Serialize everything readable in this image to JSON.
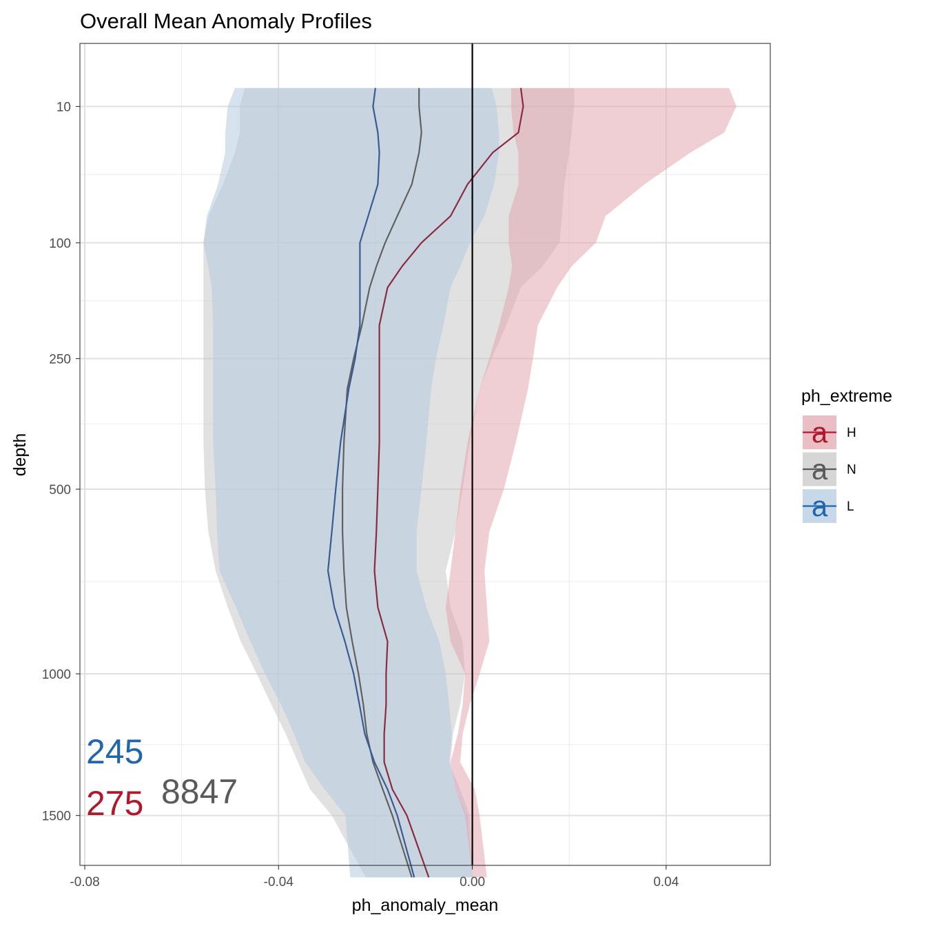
{
  "chart_data": {
    "type": "area",
    "title": "Overall Mean Anomaly Profiles",
    "xlabel": "ph_anomaly_mean",
    "ylabel": "depth",
    "xlim": [
      -0.081,
      0.0615
    ],
    "y_transform": "sqrt",
    "ylim": [
      -1700,
      0
    ],
    "x_ticks": [
      -0.08,
      -0.04,
      0.0,
      0.04
    ],
    "x_tick_labels": [
      "-0.08",
      "-0.04",
      "0.00",
      "0.04"
    ],
    "y_ticks": [
      10,
      100,
      250,
      500,
      1000,
      1500
    ],
    "y_tick_labels": [
      "10",
      "100",
      "250",
      "500",
      "1000",
      "1500"
    ],
    "grid": true,
    "legend": {
      "title": "ph_extreme",
      "placement": "right",
      "keys": [
        "H",
        "N",
        "L"
      ],
      "glyph": "a"
    },
    "vline_x": 0.0,
    "depths": [
      5,
      10,
      20,
      30,
      50,
      75,
      100,
      125,
      150,
      200,
      250,
      300,
      400,
      500,
      600,
      700,
      800,
      900,
      1000,
      1100,
      1200,
      1300,
      1400,
      1500,
      1750
    ],
    "series": [
      {
        "name": "N",
        "color": "#606060",
        "fill": "#c8c8c8",
        "mean": [
          -0.011,
          -0.011,
          -0.0105,
          -0.011,
          -0.0125,
          -0.0155,
          -0.018,
          -0.0198,
          -0.0212,
          -0.0228,
          -0.0245,
          -0.0258,
          -0.0265,
          -0.0268,
          -0.0268,
          -0.0265,
          -0.026,
          -0.0248,
          -0.0235,
          -0.0225,
          -0.0218,
          -0.0205,
          -0.0185,
          -0.0165,
          -0.0125
        ],
        "lower": [
          -0.047,
          -0.048,
          -0.048,
          -0.049,
          -0.0515,
          -0.0545,
          -0.0555,
          -0.0555,
          -0.0555,
          -0.0555,
          -0.0555,
          -0.0555,
          -0.0555,
          -0.0552,
          -0.0545,
          -0.053,
          -0.0505,
          -0.0478,
          -0.0445,
          -0.0415,
          -0.0385,
          -0.036,
          -0.0335,
          -0.029,
          -0.022
        ],
        "upper": [
          0.021,
          0.021,
          0.0205,
          0.02,
          0.019,
          0.0185,
          0.018,
          0.0145,
          0.01,
          0.007,
          0.004,
          0.0015,
          -0.0005,
          -0.002,
          -0.0035,
          -0.0055,
          -0.0045,
          -0.002,
          -0.0015,
          -0.0025,
          -0.004,
          -0.0045,
          -0.0035,
          -0.001,
          0.0
        ]
      },
      {
        "name": "L",
        "color": "#3a5a94",
        "fill": "#b4cce2",
        "mean": [
          -0.02,
          -0.0205,
          -0.0195,
          -0.0192,
          -0.0195,
          -0.0215,
          -0.0232,
          -0.0232,
          -0.0232,
          -0.0232,
          -0.0242,
          -0.0255,
          -0.0272,
          -0.0282,
          -0.029,
          -0.0298,
          -0.0285,
          -0.0263,
          -0.0245,
          -0.0233,
          -0.0222,
          -0.0202,
          -0.0175,
          -0.0155,
          -0.012
        ],
        "lower": [
          -0.049,
          -0.0505,
          -0.051,
          -0.051,
          -0.0525,
          -0.0548,
          -0.0555,
          -0.0545,
          -0.0538,
          -0.0535,
          -0.0535,
          -0.0535,
          -0.0535,
          -0.053,
          -0.0527,
          -0.0522,
          -0.0488,
          -0.0458,
          -0.0428,
          -0.0395,
          -0.0368,
          -0.0345,
          -0.0305,
          -0.0262,
          -0.0252
        ],
        "upper": [
          0.004,
          0.005,
          0.0055,
          0.0055,
          0.0045,
          0.0025,
          -0.0005,
          -0.0025,
          -0.0045,
          -0.006,
          -0.0075,
          -0.0085,
          -0.0095,
          -0.0105,
          -0.0115,
          -0.0115,
          -0.0095,
          -0.0068,
          -0.0055,
          -0.0048,
          -0.0042,
          -0.0048,
          -0.0025,
          -0.0005,
          0.0
        ]
      },
      {
        "name": "H",
        "color": "#8b2a3e",
        "fill": "#e4a7b1",
        "mean": [
          0.01,
          0.0105,
          0.0095,
          0.0042,
          -0.001,
          -0.0045,
          -0.0105,
          -0.0145,
          -0.0175,
          -0.0192,
          -0.0192,
          -0.0192,
          -0.0192,
          -0.0195,
          -0.0198,
          -0.0202,
          -0.0195,
          -0.0175,
          -0.0178,
          -0.0178,
          -0.0182,
          -0.0182,
          -0.0165,
          -0.0135,
          -0.009
        ],
        "lower": [
          0.008,
          0.008,
          0.0085,
          0.0095,
          0.0095,
          0.0075,
          0.0075,
          0.0082,
          0.0075,
          0.0055,
          0.0035,
          0.0015,
          -0.001,
          -0.0025,
          -0.0035,
          -0.0045,
          -0.0055,
          -0.0045,
          -0.0015,
          -0.002,
          -0.003,
          -0.0045,
          -0.0035,
          -0.0015,
          0.0
        ],
        "upper": [
          0.053,
          0.0545,
          0.052,
          0.045,
          0.0355,
          0.0275,
          0.0255,
          0.0205,
          0.0175,
          0.0135,
          0.0125,
          0.0115,
          0.009,
          0.0065,
          0.0035,
          0.0025,
          0.003,
          0.0035,
          0.0015,
          -0.0005,
          -0.002,
          -0.0025,
          0.0005,
          0.0015,
          0.003
        ]
      }
    ],
    "annotations": [
      {
        "text": "245",
        "series": "L",
        "color": "#2166ac"
      },
      {
        "text": "275",
        "series": "H",
        "color": "#b2182b"
      },
      {
        "text": "8847",
        "series": "N",
        "color": "#5a5a5a"
      }
    ]
  }
}
